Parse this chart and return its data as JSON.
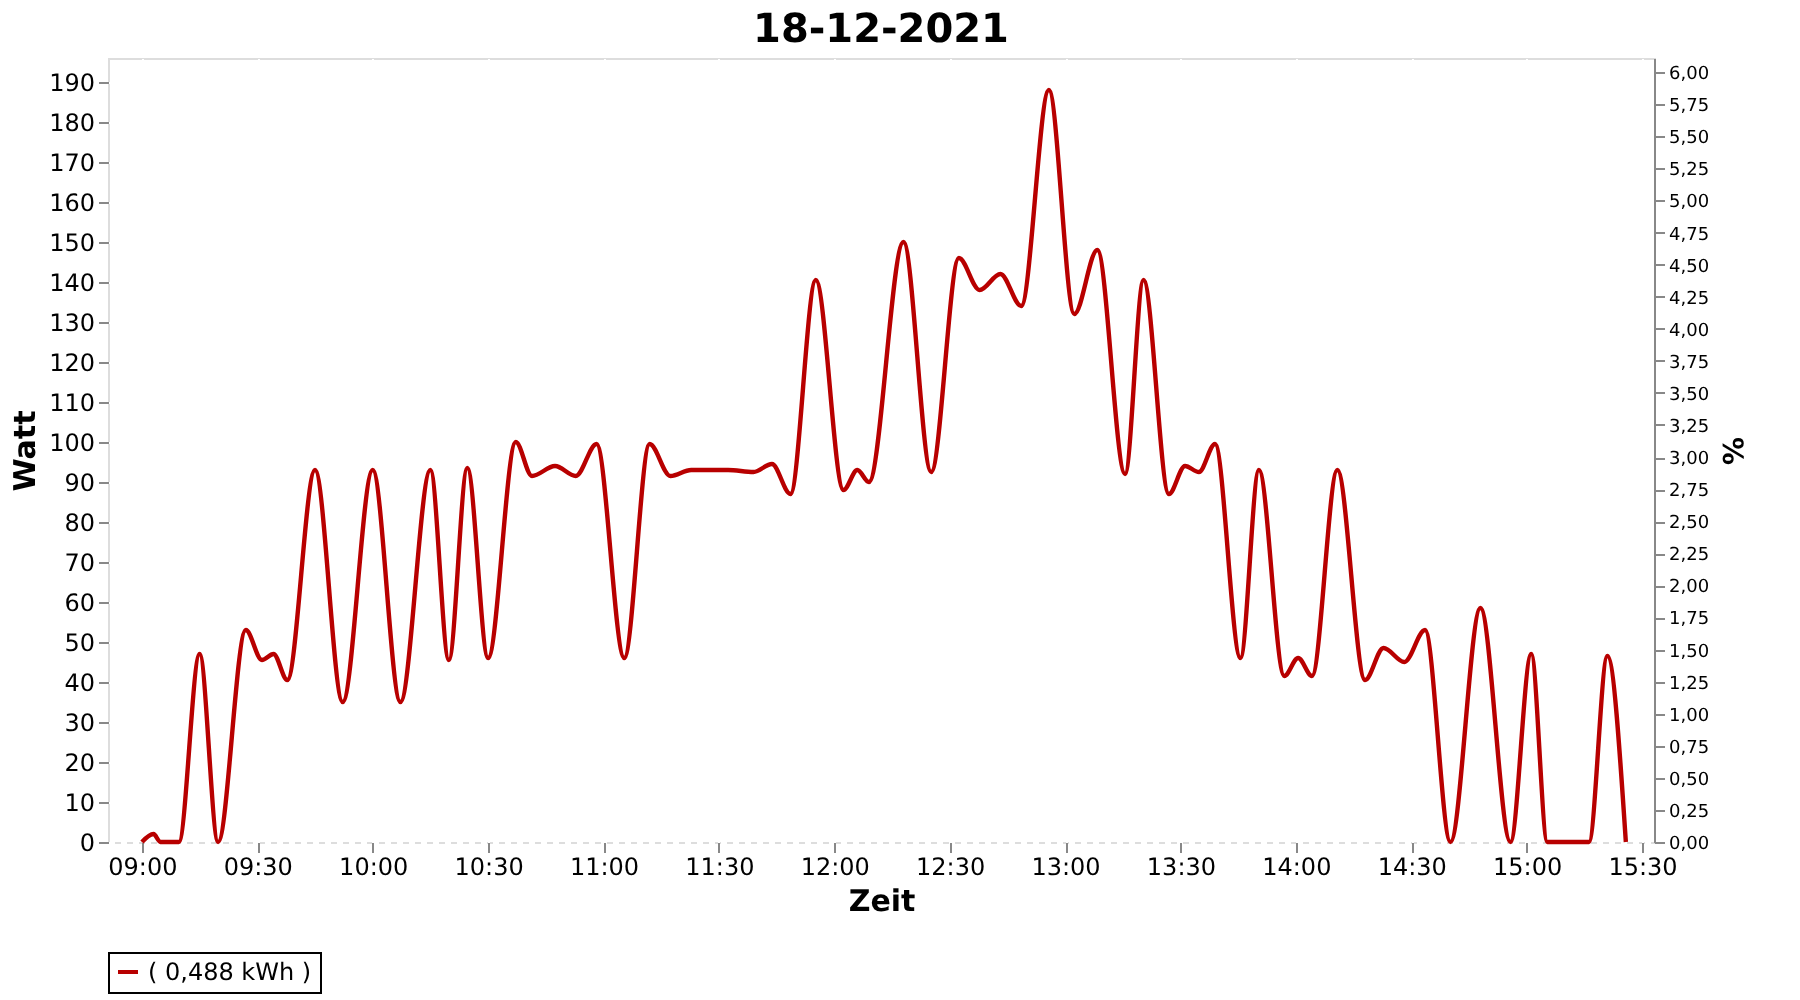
{
  "chart_data": {
    "type": "line",
    "title": "18-12-2021",
    "xlabel": "Zeit",
    "ylabel": "Watt",
    "y2label": "%",
    "xlim": [
      8.853,
      15.552
    ],
    "ylim": [
      0,
      196
    ],
    "y2lim": [
      0,
      6.11
    ],
    "xticks": [
      {
        "value": 9,
        "label": "09:00"
      },
      {
        "value": 9.5,
        "label": "09:30"
      },
      {
        "value": 10,
        "label": "10:00"
      },
      {
        "value": 10.5,
        "label": "10:30"
      },
      {
        "value": 11,
        "label": "11:00"
      },
      {
        "value": 11.5,
        "label": "11:30"
      },
      {
        "value": 12,
        "label": "12:00"
      },
      {
        "value": 12.5,
        "label": "12:30"
      },
      {
        "value": 13,
        "label": "13:00"
      },
      {
        "value": 13.5,
        "label": "13:30"
      },
      {
        "value": 14,
        "label": "14:00"
      },
      {
        "value": 14.5,
        "label": "14:30"
      },
      {
        "value": 15,
        "label": "15:00"
      },
      {
        "value": 15.5,
        "label": "15:30"
      }
    ],
    "yticks": [
      0,
      10,
      20,
      30,
      40,
      50,
      60,
      70,
      80,
      90,
      100,
      110,
      120,
      130,
      140,
      150,
      160,
      170,
      180,
      190
    ],
    "y2ticks": [
      {
        "value": 0,
        "label": "0,00"
      },
      {
        "value": 0.25,
        "label": "0,25"
      },
      {
        "value": 0.5,
        "label": "0,50"
      },
      {
        "value": 0.75,
        "label": "0,75"
      },
      {
        "value": 1,
        "label": "1,00"
      },
      {
        "value": 1.25,
        "label": "1,25"
      },
      {
        "value": 1.5,
        "label": "1,50"
      },
      {
        "value": 1.75,
        "label": "1,75"
      },
      {
        "value": 2,
        "label": "2,00"
      },
      {
        "value": 2.25,
        "label": "2,25"
      },
      {
        "value": 2.5,
        "label": "2,50"
      },
      {
        "value": 2.75,
        "label": "2,75"
      },
      {
        "value": 3,
        "label": "3,00"
      },
      {
        "value": 3.25,
        "label": "3,25"
      },
      {
        "value": 3.5,
        "label": "3,50"
      },
      {
        "value": 3.75,
        "label": "3,75"
      },
      {
        "value": 4,
        "label": "4,00"
      },
      {
        "value": 4.25,
        "label": "4,25"
      },
      {
        "value": 4.5,
        "label": "4,50"
      },
      {
        "value": 4.75,
        "label": "4,75"
      },
      {
        "value": 5,
        "label": "5,00"
      },
      {
        "value": 5.25,
        "label": "5,25"
      },
      {
        "value": 5.5,
        "label": "5,50"
      },
      {
        "value": 5.75,
        "label": "5,75"
      },
      {
        "value": 6,
        "label": "6,00"
      }
    ],
    "grid": true,
    "legend": "bottom",
    "series": [
      {
        "name": "( 0,488 kWh )",
        "color": "#b80000",
        "x": [
          9.0,
          9.05,
          9.08,
          9.16,
          9.25,
          9.33,
          9.45,
          9.52,
          9.57,
          9.63,
          9.75,
          9.87,
          10.0,
          10.12,
          10.25,
          10.33,
          10.41,
          10.5,
          10.62,
          10.69,
          10.79,
          10.88,
          10.97,
          11.09,
          11.2,
          11.29,
          11.38,
          11.54,
          11.65,
          11.73,
          11.81,
          11.92,
          12.04,
          12.1,
          12.15,
          12.3,
          12.42,
          12.54,
          12.63,
          12.72,
          12.81,
          12.93,
          13.04,
          13.14,
          13.26,
          13.34,
          13.45,
          13.52,
          13.58,
          13.65,
          13.76,
          13.84,
          13.95,
          14.01,
          14.07,
          14.18,
          14.3,
          14.38,
          14.47,
          14.56,
          14.67,
          14.8,
          14.93,
          15.02,
          15.09,
          15.27,
          15.35,
          15.43
        ],
        "values": [
          0,
          2,
          0,
          0,
          47,
          0,
          53,
          45.5,
          47,
          40.5,
          93,
          35,
          93,
          35,
          93,
          45.5,
          93.5,
          46,
          100,
          91.5,
          94,
          91.5,
          99.5,
          46,
          99.5,
          91.5,
          93,
          93,
          92.5,
          94.5,
          87,
          140.5,
          88,
          93,
          90,
          150,
          92.5,
          146,
          138,
          142,
          134,
          188,
          132,
          148,
          92,
          140.5,
          87,
          94,
          92.5,
          99.5,
          46,
          93,
          41.5,
          46,
          41.5,
          93,
          40.5,
          48.5,
          45,
          53,
          0,
          58.5,
          0,
          47,
          0,
          0,
          46.5,
          0
        ]
      }
    ]
  }
}
